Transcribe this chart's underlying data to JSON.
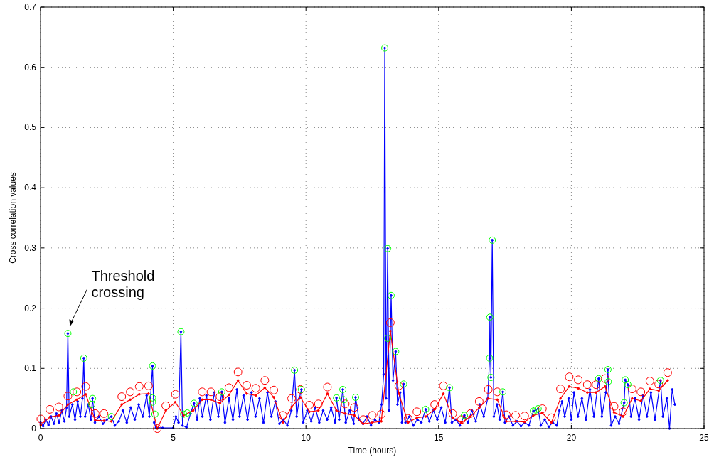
{
  "chart_data": {
    "type": "line",
    "xlabel": "Time (hours)",
    "ylabel": "Cross correlation values",
    "xlim": [
      0,
      25
    ],
    "ylim": [
      0,
      0.7
    ],
    "xticks": [
      0,
      5,
      10,
      15,
      20,
      25
    ],
    "yticks": [
      0,
      0.1,
      0.2,
      0.3,
      0.4,
      0.5,
      0.6,
      0.7
    ],
    "grid": true,
    "annotations": [
      {
        "text": "Threshold crossing",
        "x": 1.03,
        "y": 0.158
      }
    ],
    "series": [
      {
        "color": "#0000ff",
        "marker": "circle",
        "x": [
          0,
          0.1,
          0.2,
          0.3,
          0.4,
          0.5,
          0.6,
          0.7,
          0.8,
          0.9,
          0.98,
          1.03,
          1.08,
          1.2,
          1.3,
          1.4,
          1.5,
          1.58,
          1.63,
          1.68,
          1.8,
          1.9,
          1.96,
          2.05,
          2.2,
          2.35,
          2.5,
          2.67,
          2.8,
          2.95,
          3.1,
          3.25,
          3.4,
          3.55,
          3.7,
          3.85,
          4.0,
          4.1,
          4.22,
          4.28,
          4.35,
          4.6,
          5.0,
          5.1,
          5.2,
          5.29,
          5.35,
          5.5,
          5.65,
          5.78,
          5.9,
          6.0,
          6.1,
          6.25,
          6.4,
          6.55,
          6.7,
          6.83,
          6.95,
          7.1,
          7.25,
          7.4,
          7.5,
          7.65,
          7.8,
          7.95,
          8.1,
          8.25,
          8.4,
          8.55,
          8.7,
          8.85,
          9.0,
          9.15,
          9.3,
          9.45,
          9.57,
          9.65,
          9.75,
          9.83,
          9.9,
          10.05,
          10.2,
          10.35,
          10.5,
          10.65,
          10.8,
          10.95,
          11.1,
          11.15,
          11.25,
          11.39,
          11.5,
          11.65,
          11.8,
          11.87,
          12.0,
          12.15,
          12.3,
          12.45,
          12.6,
          12.75,
          12.85,
          12.93,
          12.97,
          13.02,
          13.08,
          13.13,
          13.21,
          13.28,
          13.38,
          13.45,
          13.55,
          13.62,
          13.68,
          13.75,
          13.9,
          14.05,
          14.2,
          14.35,
          14.51,
          14.65,
          14.8,
          14.95,
          15.1,
          15.25,
          15.41,
          15.5,
          15.65,
          15.8,
          15.97,
          16.1,
          16.25,
          16.4,
          16.55,
          16.7,
          16.85,
          16.92,
          16.93,
          16.97,
          17.02,
          17.08,
          17.2,
          17.3,
          17.42,
          17.5,
          17.65,
          17.8,
          17.95,
          18.1,
          18.25,
          18.4,
          18.57,
          18.66,
          18.75,
          18.85,
          19.0,
          19.15,
          19.3,
          19.45,
          19.55,
          19.65,
          19.75,
          19.9,
          20.0,
          20.1,
          20.25,
          20.4,
          20.55,
          20.7,
          20.85,
          21.03,
          21.15,
          21.3,
          21.38,
          21.39,
          21.5,
          21.65,
          21.8,
          21.99,
          22.03,
          22.13,
          22.25,
          22.4,
          22.55,
          22.7,
          22.85,
          23.0,
          23.15,
          23.36,
          23.45,
          23.6,
          23.7,
          23.8,
          23.9
        ],
        "values": [
          0.01,
          0.004,
          0.015,
          0.006,
          0.02,
          0.008,
          0.025,
          0.01,
          0.03,
          0.012,
          0.035,
          0.158,
          0.02,
          0.04,
          0.015,
          0.045,
          0.02,
          0.05,
          0.117,
          0.02,
          0.04,
          0.015,
          0.05,
          0.01,
          0.02,
          0.008,
          0.015,
          0.02,
          0.005,
          0.012,
          0.03,
          0.01,
          0.035,
          0.015,
          0.04,
          0.02,
          0.055,
          0.02,
          0.104,
          0.01,
          0.002,
          0.001,
          0.001,
          0.02,
          0.01,
          0.161,
          0.005,
          0.002,
          0.025,
          0.042,
          0.015,
          0.05,
          0.02,
          0.055,
          0.015,
          0.06,
          0.02,
          0.061,
          0.01,
          0.05,
          0.015,
          0.065,
          0.02,
          0.055,
          0.015,
          0.06,
          0.02,
          0.05,
          0.01,
          0.06,
          0.02,
          0.045,
          0.008,
          0.015,
          0.005,
          0.03,
          0.097,
          0.02,
          0.05,
          0.065,
          0.01,
          0.03,
          0.012,
          0.035,
          0.01,
          0.03,
          0.015,
          0.035,
          0.01,
          0.051,
          0.015,
          0.065,
          0.01,
          0.03,
          0.008,
          0.052,
          0.015,
          0.008,
          0.02,
          0.005,
          0.015,
          0.01,
          0.04,
          0.09,
          0.632,
          0.05,
          0.299,
          0.03,
          0.221,
          0.08,
          0.128,
          0.04,
          0.06,
          0.01,
          0.074,
          0.01,
          0.02,
          0.005,
          0.015,
          0.01,
          0.032,
          0.012,
          0.03,
          0.015,
          0.035,
          0.01,
          0.068,
          0.01,
          0.015,
          0.005,
          0.022,
          0.01,
          0.03,
          0.012,
          0.04,
          0.02,
          0.05,
          0.117,
          0.185,
          0.085,
          0.313,
          0.02,
          0.04,
          0.015,
          0.061,
          0.01,
          0.02,
          0.005,
          0.012,
          0.004,
          0.01,
          0.005,
          0.029,
          0.031,
          0.033,
          0.005,
          0.015,
          0.003,
          0.01,
          0.005,
          0.03,
          0.045,
          0.02,
          0.05,
          0.015,
          0.06,
          0.02,
          0.05,
          0.015,
          0.065,
          0.02,
          0.083,
          0.02,
          0.06,
          0.098,
          0.078,
          0.005,
          0.02,
          0.008,
          0.043,
          0.081,
          0.073,
          0.02,
          0.05,
          0.015,
          0.055,
          0.02,
          0.06,
          0.015,
          0.08,
          0.02,
          0.05,
          0.0,
          0.065,
          0.04
        ]
      },
      {
        "color": "#ff0000",
        "marker": "circle",
        "x": [
          0.01,
          0.35,
          0.69,
          1.03,
          1.37,
          1.7,
          2.06,
          2.39,
          2.67,
          3.06,
          3.38,
          3.72,
          4.07,
          4.4,
          4.72,
          5.08,
          5.39,
          5.75,
          6.09,
          6.42,
          6.76,
          7.1,
          7.44,
          7.77,
          8.11,
          8.45,
          8.79,
          9.13,
          9.46,
          9.79,
          10.13,
          10.47,
          10.81,
          11.15,
          11.48,
          11.82,
          12.16,
          12.5,
          12.84,
          13.18,
          13.5,
          13.85,
          14.18,
          14.51,
          14.85,
          15.18,
          15.53,
          15.86,
          16.2,
          16.53,
          16.87,
          17.21,
          17.55,
          17.9,
          18.24,
          18.57,
          18.91,
          19.25,
          19.59,
          19.92,
          20.26,
          20.6,
          20.93,
          21.27,
          21.61,
          21.95,
          22.29,
          22.62,
          22.96,
          23.29,
          23.63
        ],
        "values": [
          0.006,
          0.019,
          0.022,
          0.04,
          0.048,
          0.057,
          0.014,
          0.013,
          0.012,
          0.04,
          0.048,
          0.057,
          0.058,
          0.0,
          0.03,
          0.044,
          0.022,
          0.03,
          0.048,
          0.048,
          0.042,
          0.056,
          0.08,
          0.058,
          0.055,
          0.068,
          0.052,
          0.01,
          0.036,
          0.052,
          0.028,
          0.03,
          0.058,
          0.03,
          0.025,
          0.022,
          0.008,
          0.01,
          0.012,
          0.162,
          0.058,
          0.01,
          0.018,
          0.02,
          0.032,
          0.058,
          0.018,
          0.01,
          0.02,
          0.035,
          0.05,
          0.048,
          0.012,
          0.012,
          0.011,
          0.022,
          0.026,
          0.01,
          0.05,
          0.07,
          0.067,
          0.06,
          0.06,
          0.07,
          0.027,
          0.02,
          0.05,
          0.046,
          0.066,
          0.063,
          0.08
        ]
      },
      {
        "type": "scatter",
        "color": "#ff0000",
        "marker": "circle",
        "x": [
          0.01,
          0.35,
          0.69,
          1.03,
          1.37,
          1.7,
          2.06,
          2.39,
          3.06,
          3.38,
          3.72,
          4.07,
          4.4,
          4.72,
          5.08,
          6.09,
          6.42,
          6.76,
          7.1,
          7.44,
          7.77,
          8.11,
          8.45,
          8.79,
          9.13,
          9.46,
          9.79,
          10.13,
          10.47,
          10.81,
          11.48,
          11.82,
          12.16,
          12.5,
          12.84,
          13.18,
          13.5,
          13.85,
          14.18,
          14.85,
          15.18,
          15.53,
          15.86,
          16.2,
          16.53,
          16.87,
          17.21,
          17.55,
          17.9,
          18.24,
          18.91,
          19.25,
          19.59,
          19.92,
          20.26,
          20.6,
          20.93,
          21.27,
          21.61,
          21.95,
          22.29,
          22.62,
          22.96,
          23.29,
          23.63
        ],
        "values": [
          0.016,
          0.032,
          0.036,
          0.054,
          0.061,
          0.07,
          0.025,
          0.025,
          0.053,
          0.061,
          0.07,
          0.071,
          0.0,
          0.038,
          0.057,
          0.061,
          0.061,
          0.053,
          0.068,
          0.094,
          0.072,
          0.067,
          0.08,
          0.064,
          0.022,
          0.05,
          0.065,
          0.039,
          0.041,
          0.069,
          0.041,
          0.035,
          0.015,
          0.022,
          0.024,
          0.176,
          0.071,
          0.017,
          0.028,
          0.04,
          0.071,
          0.025,
          0.015,
          0.025,
          0.045,
          0.065,
          0.061,
          0.023,
          0.022,
          0.021,
          0.033,
          0.018,
          0.066,
          0.086,
          0.081,
          0.073,
          0.073,
          0.083,
          0.037,
          0.028,
          0.066,
          0.061,
          0.079,
          0.074,
          0.093
        ]
      },
      {
        "type": "scatter",
        "color": "#00ff00",
        "marker": "circle",
        "x": [
          1.03,
          1.24,
          1.63,
          1.93,
          1.96,
          2.67,
          4.22,
          4.22,
          4.22,
          4.31,
          5.29,
          5.39,
          5.53,
          5.78,
          6.83,
          9.57,
          9.83,
          11.15,
          11.39,
          11.42,
          11.87,
          12.97,
          13.08,
          13.08,
          13.21,
          13.38,
          13.68,
          14.51,
          15.41,
          15.97,
          16.92,
          16.93,
          16.97,
          17.02,
          17.42,
          18.57,
          18.66,
          18.75,
          21.03,
          21.38,
          21.39,
          21.99,
          22.03,
          22.13,
          23.36
        ],
        "values": [
          0.158,
          0.061,
          0.117,
          0.04,
          0.05,
          0.02,
          0.104,
          0.051,
          0.044,
          0.024,
          0.161,
          0.024,
          0.026,
          0.042,
          0.061,
          0.097,
          0.065,
          0.051,
          0.065,
          0.048,
          0.052,
          0.632,
          0.299,
          0.15,
          0.221,
          0.128,
          0.074,
          0.032,
          0.068,
          0.022,
          0.117,
          0.185,
          0.085,
          0.313,
          0.061,
          0.029,
          0.031,
          0.033,
          0.083,
          0.098,
          0.078,
          0.043,
          0.081,
          0.073,
          0.08
        ]
      }
    ]
  }
}
